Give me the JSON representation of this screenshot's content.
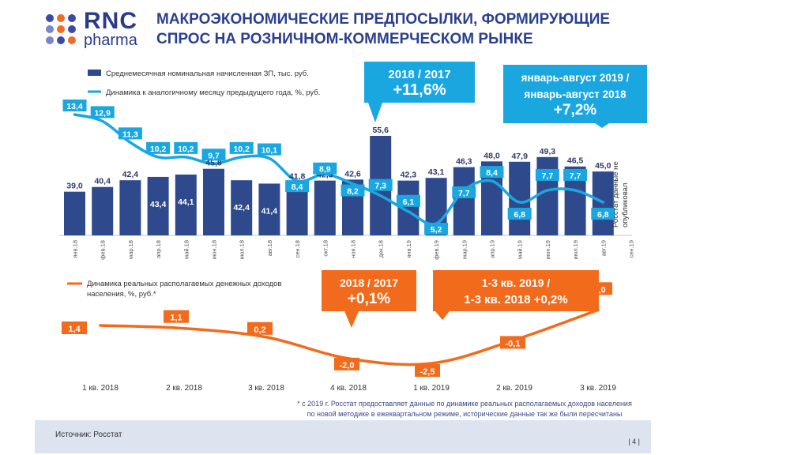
{
  "header": {
    "logo_top": "RNC",
    "logo_bottom": "pharma",
    "title_line1": "МАКРОЭКОНОМИЧЕСКИЕ ПРЕДПОСЫЛКИ, ФОРМИРУЮЩИЕ",
    "title_line2": "СПРОС НА РОЗНИЧНОМ-КОММЕРЧЕСКОМ РЫНКЕ",
    "logo_dot_colors": [
      "#3a4aa8",
      "#ef6c23",
      "#3a4aa8",
      "#7a86c9",
      "#ef6c23",
      "#3a4aa8",
      "#7a86c9",
      "#3a4aa8",
      "#ef6c23"
    ]
  },
  "chart_data": [
    {
      "type": "bar+line",
      "categories": [
        "янв.18",
        "фев.18",
        "мар.18",
        "апр.18",
        "май.18",
        "июн.18",
        "июл.18",
        "авг.18",
        "сен.18",
        "окт.18",
        "ноя.18",
        "дек.18",
        "янв.19",
        "фев.19",
        "мар.19",
        "апр.19",
        "май.19",
        "июн.19",
        "июл.19",
        "авг.19",
        "сен.19"
      ],
      "series": [
        {
          "name": "Среднемесячная номинальная начисленная ЗП, тыс. руб.",
          "kind": "bar",
          "color": "#2f4a8c",
          "values": [
            39.0,
            40.4,
            42.4,
            43.4,
            44.1,
            45.8,
            42.4,
            41.4,
            41.8,
            42.3,
            42.6,
            55.6,
            42.3,
            43.1,
            46.3,
            48.0,
            47.9,
            49.3,
            46.5,
            45.0,
            null
          ],
          "labels": [
            "39,0",
            "40,4",
            "42,4",
            "43,4",
            "44,1",
            "45,8",
            "42,4",
            "41,4",
            "41,8",
            "42,3",
            "42,6",
            "55,6",
            "42,3",
            "43,1",
            "46,3",
            "48,0",
            "47,9",
            "49,3",
            "46,5",
            "45,0",
            ""
          ]
        },
        {
          "name": "Динамика к аналогичному месяцу предыдущего года, %, руб.",
          "kind": "line",
          "color": "#1aa7e0",
          "values": [
            13.4,
            12.9,
            11.3,
            10.2,
            10.2,
            9.7,
            10.2,
            10.1,
            8.4,
            8.9,
            8.2,
            7.3,
            6.1,
            5.2,
            7.7,
            8.4,
            6.8,
            7.7,
            7.7,
            6.8,
            null
          ],
          "labels": [
            "13,4",
            "12,9",
            "11,3",
            "10,2",
            "10,2",
            "9,7",
            "10,2",
            "10,1",
            "8,4",
            "8,9",
            "8,2",
            "7,3",
            "6,1",
            "5,2",
            "7,7",
            "8,4",
            "6,8",
            "7,7",
            "7,7",
            "6,8",
            ""
          ]
        }
      ],
      "callouts": [
        {
          "line1": "2018 / 2017",
          "line2": "+11,6%",
          "color": "#1aa7e0"
        },
        {
          "line1": "январь-август 2019 /",
          "line2": "январь-август 2018",
          "line3": "+7,2%",
          "color": "#1aa7e0"
        }
      ],
      "side_note": "Росстат данные не опубликовал",
      "side_note_lines": [
        "Росстат данные не",
        "опубликовал"
      ]
    },
    {
      "type": "line",
      "categories": [
        "1 кв. 2018",
        "2 кв. 2018",
        "3 кв. 2018",
        "4 кв. 2018",
        "1 кв. 2019",
        "2 кв. 2019",
        "3 кв. 2019"
      ],
      "series": [
        {
          "name": "Динамика реальных располагаемых денежных доходов населения, %, руб.*",
          "color": "#f26a1b",
          "values": [
            1.4,
            1.1,
            0.2,
            -2.0,
            -2.5,
            -0.1,
            3.0
          ],
          "labels": [
            "1,4",
            "1,1",
            "0,2",
            "-2,0",
            "-2,5",
            "-0,1",
            "3,0"
          ]
        }
      ],
      "legend_lines": [
        "Динамика реальных располагаемых денежных доходов",
        "населения, %, руб.*"
      ],
      "callouts": [
        {
          "line1": "2018 / 2017",
          "line2": "+0,1%",
          "color": "#f26a1b"
        },
        {
          "line1": "1-3 кв. 2019 /",
          "line2": "1-3 кв. 2018 +0,2%",
          "color": "#f26a1b"
        }
      ]
    }
  ],
  "footnote": {
    "line1": "* с 2019 г. Росстат предоставляет данные по динамике реальных располагаемых доходов населения",
    "line2": "по новой методике в ежеквартальном режиме, исторические данные так же были пересчитаны"
  },
  "footer": {
    "source": "Источник: Росстат",
    "page": "| 4 |"
  }
}
